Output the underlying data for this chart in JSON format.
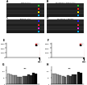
{
  "background_color": "#ffffff",
  "top_panels": {
    "labels_row1": [
      "A",
      "B"
    ],
    "labels_row2": [
      "C",
      "D"
    ],
    "titles_row1": [
      "DMSO (Ctrl)",
      "SB203580 + DMSO (Ctrl)"
    ],
    "titles_row2": [
      "Bafilom. (Ctrl)",
      "SB203580 + Bafilom."
    ],
    "strip_colors": [
      "#2a2a2a",
      "#1a1a1a",
      "#222222",
      "#181818"
    ],
    "dot_colors_row1": [
      [
        "#22cc22",
        "#ff2222",
        "#ffdd00",
        "#00aaff"
      ],
      [
        "#22cc22",
        "#ff2222",
        "#ffdd00",
        "#00aaff"
      ]
    ],
    "dot_colors_row2": [
      [
        "#2222ff",
        "#ff2222",
        "#ff22ff",
        "#00aaff"
      ],
      [
        "#2222ff",
        "#ff2222",
        "#ff22ff",
        "#00aaff"
      ]
    ]
  },
  "hist_labels": [
    "E",
    "F"
  ],
  "bar_labels": [
    "G",
    "H"
  ],
  "bar_groups": 6,
  "bar_vals_left": [
    [
      78,
      68,
      55,
      62,
      72,
      85
    ],
    [
      75,
      65,
      52,
      58,
      68,
      80
    ]
  ],
  "bar_vals_right": [
    [
      80,
      70,
      58,
      65,
      75,
      88
    ],
    [
      76,
      66,
      54,
      60,
      70,
      82
    ]
  ],
  "bar_gray_series1": [
    "#bbbbbb",
    "#999999",
    "#777777",
    "#555555",
    "#333333",
    "#111111"
  ],
  "bar_gray_series2": [
    "#aaaaaa",
    "#888888",
    "#666666",
    "#444444",
    "#222222",
    "#000000"
  ],
  "bar_ylim": [
    0,
    130
  ],
  "hist_xlim": [
    0,
    1000
  ],
  "hist_ylim": [
    0,
    3200
  ]
}
